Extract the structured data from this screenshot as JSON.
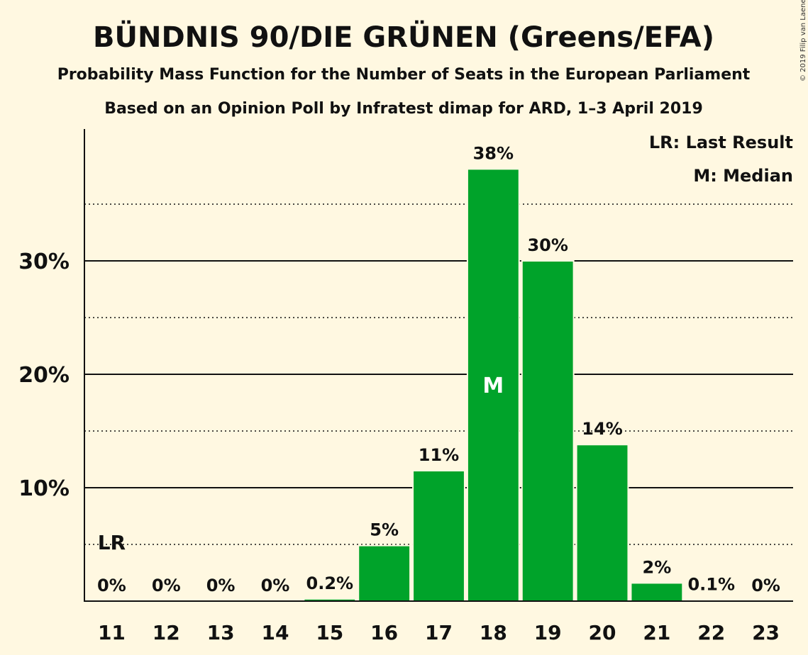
{
  "header": {
    "title": "BÜNDNIS 90/DIE GRÜNEN (Greens/EFA)",
    "subtitle1": "Probability Mass Function for the Number of Seats in the European Parliament",
    "subtitle2": "Based on an Opinion Poll by Infratest dimap for ARD, 1–3 April 2019",
    "copyright": "© 2019 Filip van Laenen"
  },
  "legend": {
    "last_result": "LR: Last Result",
    "median": "M: Median"
  },
  "markers": {
    "last_result_label": "LR",
    "last_result_seats": 11,
    "last_result_value": 5,
    "median_label": "M",
    "median_seats": 18
  },
  "chart_data": {
    "type": "bar",
    "categories": [
      "11",
      "12",
      "13",
      "14",
      "15",
      "16",
      "17",
      "18",
      "19",
      "20",
      "21",
      "22",
      "23"
    ],
    "values": [
      0,
      0,
      0,
      0,
      0.2,
      4.9,
      11.5,
      38.1,
      30.0,
      13.8,
      1.6,
      0.1,
      0
    ],
    "data_labels": [
      "0%",
      "0%",
      "0%",
      "0%",
      "0.2%",
      "5%",
      "11%",
      "38%",
      "30%",
      "14%",
      "2%",
      "0.1%",
      "0%"
    ],
    "ylim": [
      0,
      40
    ],
    "yticks": [
      {
        "value": 10,
        "label": "10%"
      },
      {
        "value": 20,
        "label": "20%"
      },
      {
        "value": 30,
        "label": "30%"
      }
    ],
    "minor_gridlines": [
      5,
      15,
      25,
      35
    ],
    "bar_color": "#00a32a",
    "legend_position": "top-right"
  }
}
